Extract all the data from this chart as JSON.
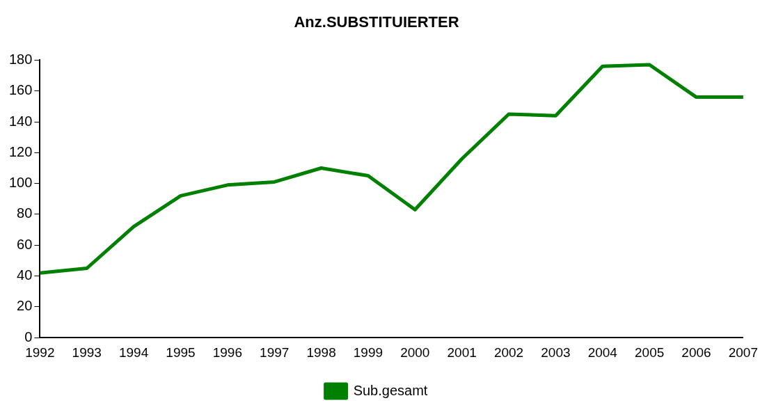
{
  "chart_data": {
    "type": "line",
    "title": "Anz.SUBSTITUIERTER",
    "categories": [
      "1992",
      "1993",
      "1994",
      "1995",
      "1996",
      "1997",
      "1998",
      "1999",
      "2000",
      "2001",
      "2002",
      "2003",
      "2004",
      "2005",
      "2006",
      "2007"
    ],
    "series": [
      {
        "name": "Sub.gesamt",
        "color": "#008000",
        "values": [
          42,
          45,
          72,
          92,
          99,
          101,
          110,
          105,
          83,
          116,
          145,
          144,
          176,
          177,
          156,
          156
        ]
      }
    ],
    "ylim": [
      0,
      180
    ],
    "yticks": [
      0,
      20,
      40,
      60,
      80,
      100,
      120,
      140,
      160,
      180
    ],
    "grid": false,
    "legend": "bottom",
    "marker": "none",
    "line_style": "solid"
  }
}
